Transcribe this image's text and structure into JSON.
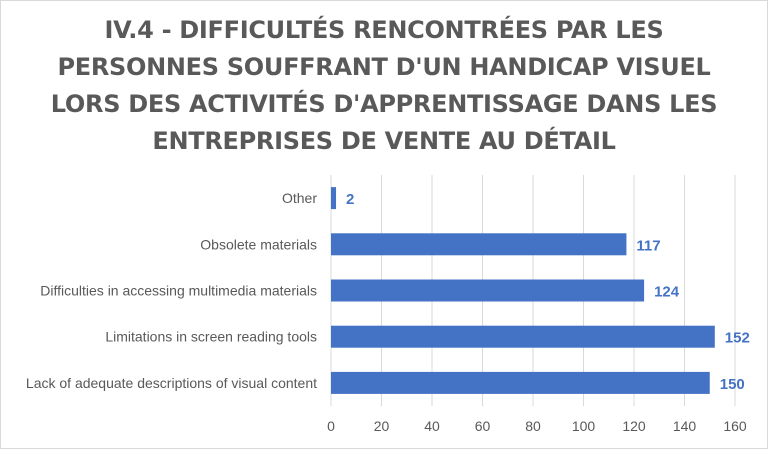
{
  "chart_data": {
    "type": "bar",
    "orientation": "horizontal",
    "title_lines": [
      "IV.4 - DIFFICULTÉS RENCONTRÉES PAR LES",
      "PERSONNES SOUFFRANT D'UN HANDICAP VISUEL",
      "LORS DES ACTIVITÉS D'APPRENTISSAGE DANS LES",
      "ENTREPRISES DE VENTE AU DÉTAIL"
    ],
    "categories": [
      "Other",
      "Obsolete materials",
      "Difficulties in accessing multimedia materials",
      "Limitations in screen reading tools",
      "Lack of adequate descriptions of visual content"
    ],
    "values": [
      2,
      117,
      124,
      152,
      150
    ],
    "xlim": [
      0,
      160
    ],
    "xticks": [
      0,
      20,
      40,
      60,
      80,
      100,
      120,
      140,
      160
    ],
    "grid": "vertical",
    "legend": "none",
    "bar_color": "#4472c4",
    "label_color": "#4472c4"
  }
}
